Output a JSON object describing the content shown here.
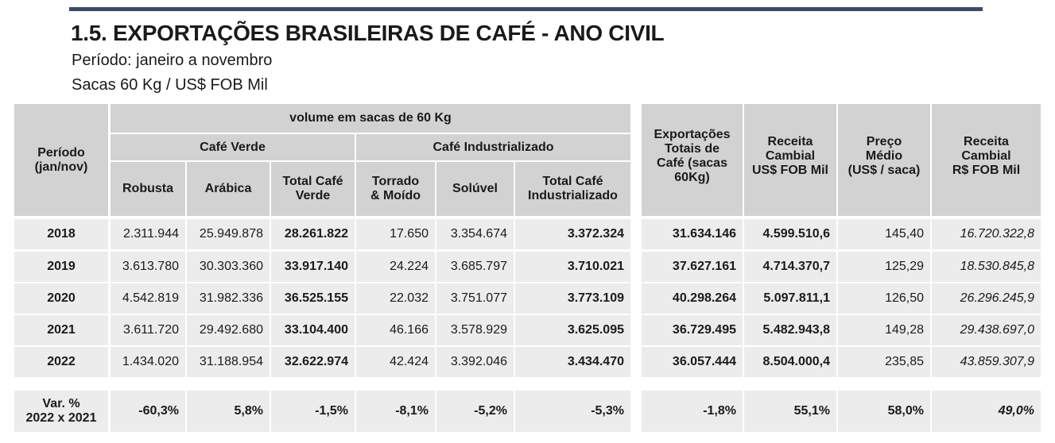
{
  "title": "1.5. EXPORTAÇÕES BRASILEIRAS DE CAFÉ - ANO CIVIL",
  "subtitle1": "Período: janeiro a novembro",
  "subtitle2": "Sacas 60 Kg / US$ FOB Mil",
  "headers": {
    "periodo": "Período\n(jan/nov)",
    "volume": "volume em sacas de 60 Kg",
    "cafe_verde": "Café Verde",
    "cafe_ind": "Café Industrializado",
    "robusta": "Robusta",
    "arabica": "Arábica",
    "total_verde": "Total Café\nVerde",
    "torrado": "Torrado\n& Moído",
    "soluvel": "Solúvel",
    "total_ind": "Total Café\nIndustrializado",
    "export_totais": "Exportações\nTotais de\nCafé (sacas\n60Kg)",
    "receita_usd": "Receita\nCambial\nUS$ FOB Mil",
    "preco": "Preço\nMédio\n(US$ / saca)",
    "receita_brl": "Receita\nCambial\nR$ FOB Mil"
  },
  "rows": [
    {
      "year": "2018",
      "values": [
        "2.311.944",
        "25.949.878",
        "28.261.822",
        "17.650",
        "3.354.674",
        "3.372.324",
        "31.634.146",
        "4.599.510,6",
        "145,40",
        "16.720.322,8"
      ]
    },
    {
      "year": "2019",
      "values": [
        "3.613.780",
        "30.303.360",
        "33.917.140",
        "24.224",
        "3.685.797",
        "3.710.021",
        "37.627.161",
        "4.714.370,7",
        "125,29",
        "18.530.845,8"
      ]
    },
    {
      "year": "2020",
      "values": [
        "4.542.819",
        "31.982.336",
        "36.525.155",
        "22.032",
        "3.751.077",
        "3.773.109",
        "40.298.264",
        "5.097.811,1",
        "126,50",
        "26.296.245,9"
      ]
    },
    {
      "year": "2021",
      "values": [
        "3.611.720",
        "29.492.680",
        "33.104.400",
        "46.166",
        "3.578.929",
        "3.625.095",
        "36.729.495",
        "5.482.943,8",
        "149,28",
        "29.438.697,0"
      ]
    },
    {
      "year": "2022",
      "values": [
        "1.434.020",
        "31.188.954",
        "32.622.974",
        "42.424",
        "3.392.046",
        "3.434.470",
        "36.057.444",
        "8.504.000,4",
        "235,85",
        "43.859.307,9"
      ]
    }
  ],
  "variation": {
    "label": "Var. %\n2022 x 2021",
    "values": [
      "-60,3%",
      "5,8%",
      "-1,5%",
      "-8,1%",
      "-5,2%",
      "-5,3%",
      "-1,8%",
      "55,1%",
      "58,0%",
      "49,0%"
    ]
  }
}
